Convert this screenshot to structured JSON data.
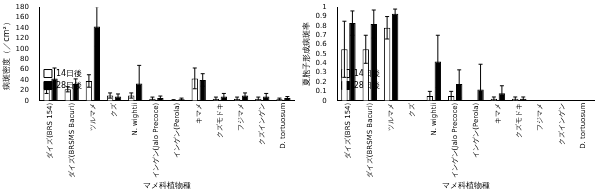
{
  "chart_data": [
    {
      "type": "bar",
      "x_label": "マメ科植物種",
      "y_label": "病斑密度（／cm²）",
      "categories": [
        "ダイズ(BRS 154)",
        "ダイズ(BRSMS Bacuri)",
        "ツルマメ",
        "クズ",
        "N. wightii",
        "インゲン(Jalo Precoce)",
        "インゲン(Perola)",
        "キマメ",
        "クズモドキ",
        "フジマメ",
        "クズインゲン",
        "D. tortuosum"
      ],
      "series": [
        {
          "name": "14日後",
          "color": "#ffffff",
          "values": [
            22,
            22,
            38,
            10,
            10,
            4,
            1,
            43,
            4,
            4,
            4,
            3
          ],
          "errors": [
            8,
            5,
            12,
            5,
            5,
            3,
            1,
            20,
            3,
            3,
            3,
            2
          ]
        },
        {
          "name": "28日後",
          "color": "#000000",
          "values": [
            43,
            32,
            143,
            8,
            33,
            5,
            3,
            40,
            8,
            10,
            8,
            5
          ],
          "errors": [
            20,
            10,
            38,
            5,
            35,
            4,
            2,
            12,
            6,
            5,
            6,
            3
          ]
        }
      ],
      "ylim": [
        0,
        180
      ],
      "yticks": [
        0,
        20,
        40,
        60,
        80,
        100,
        120,
        140,
        160,
        180
      ],
      "legend": "top-right",
      "grid": false
    },
    {
      "type": "bar",
      "x_label": "マメ科植物種",
      "y_label": "夏胞子形成病斑率",
      "categories": [
        "ダイズ(BRS 154)",
        "ダイズ(BRSMS Bacuri)",
        "ツルマメ",
        "クズ",
        "N. wightii",
        "インゲン(Jalo Precoce)",
        "インゲン(Perola)",
        "キマメ",
        "クズモドキ",
        "フジマメ",
        "クズインゲン",
        "D. tortuosum"
      ],
      "series": [
        {
          "name": "14日後",
          "color": "#ffffff",
          "values": [
            0.55,
            0.55,
            0.78,
            0,
            0.05,
            0.05,
            0,
            0.02,
            0.02,
            0,
            0,
            0
          ],
          "errors": [
            0.3,
            0.15,
            0.12,
            0,
            0.05,
            0.05,
            0,
            0.02,
            0.02,
            0,
            0,
            0
          ]
        },
        {
          "name": "28日後",
          "color": "#000000",
          "values": [
            0.83,
            0.82,
            0.93,
            0,
            0.42,
            0.18,
            0.12,
            0.08,
            0.02,
            0,
            0,
            0
          ],
          "errors": [
            0.13,
            0.15,
            0.05,
            0,
            0.28,
            0.15,
            0.27,
            0.08,
            0.02,
            0,
            0,
            0
          ]
        }
      ],
      "ylim": [
        0,
        1
      ],
      "yticks": [
        0,
        0.1,
        0.2,
        0.3,
        0.4,
        0.5,
        0.6,
        0.7,
        0.8,
        0.9,
        1
      ],
      "legend": "top-right",
      "grid": false
    }
  ]
}
